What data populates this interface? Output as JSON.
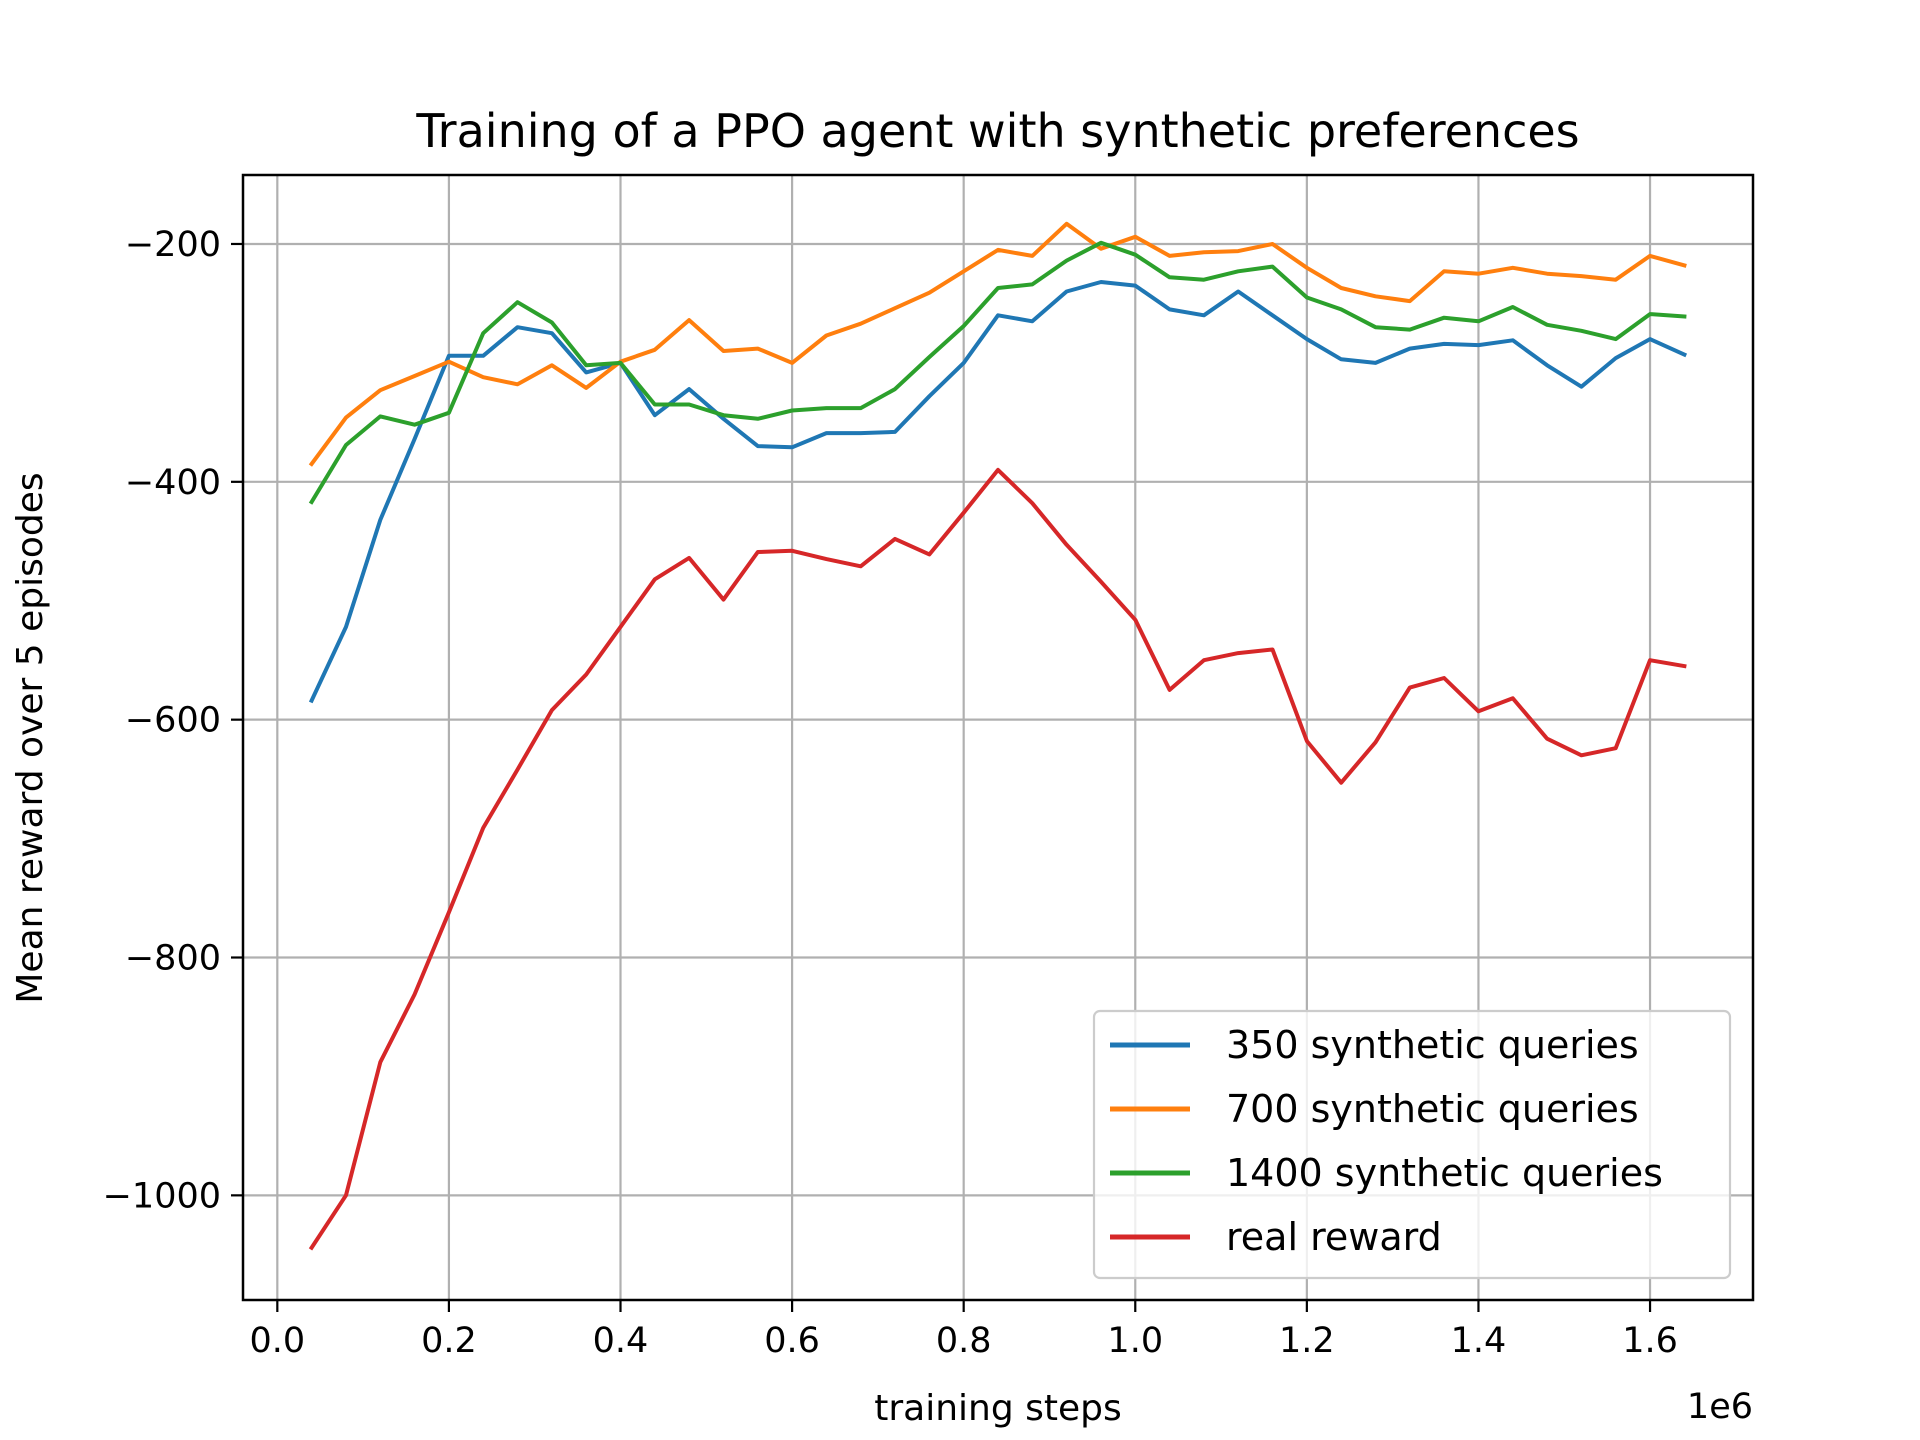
{
  "chart_data": {
    "type": "line",
    "title": "Training of a PPO agent with synthetic preferences",
    "xlabel": "training steps",
    "ylabel": "Mean reward over 5 episodes",
    "x_offset_label": "1e6",
    "xlim": [
      -0.04,
      1.72
    ],
    "ylim": [
      -1088,
      -142
    ],
    "xticks": [
      0.0,
      0.2,
      0.4,
      0.6,
      0.8,
      1.0,
      1.2,
      1.4,
      1.6
    ],
    "xtick_labels": [
      "0.0",
      "0.2",
      "0.4",
      "0.6",
      "0.8",
      "1.0",
      "1.2",
      "1.4",
      "1.6"
    ],
    "yticks": [
      -200,
      -400,
      -600,
      -800,
      -1000
    ],
    "ytick_labels": [
      "−200",
      "−400",
      "−600",
      "−800",
      "−1000"
    ],
    "grid": true,
    "legend_position": "lower-right",
    "x": [
      0.04,
      0.08,
      0.12,
      0.16,
      0.2,
      0.24,
      0.28,
      0.32,
      0.36,
      0.4,
      0.44,
      0.48,
      0.52,
      0.56,
      0.6,
      0.64,
      0.68,
      0.72,
      0.76,
      0.8,
      0.84,
      0.88,
      0.92,
      0.96,
      1.0,
      1.04,
      1.08,
      1.12,
      1.16,
      1.2,
      1.24,
      1.28,
      1.32,
      1.36,
      1.4,
      1.44,
      1.48,
      1.52,
      1.56,
      1.6,
      1.64
    ],
    "series": [
      {
        "name": "350 synthetic queries",
        "color": "#1f77b4",
        "values": [
          -584,
          -522,
          -432,
          -364,
          -294,
          -294,
          -270,
          -275,
          -308,
          -300,
          -344,
          -322,
          -347,
          -370,
          -371,
          -359,
          -359,
          -358,
          -328,
          -300,
          -260,
          -265,
          -240,
          -232,
          -235,
          -255,
          -260,
          -240,
          -260,
          -280,
          -297,
          -300,
          -288,
          -284,
          -285,
          -281,
          -302,
          -320,
          -296,
          -280,
          -293
        ]
      },
      {
        "name": "700 synthetic queries",
        "color": "#ff7f0e",
        "values": [
          -385,
          -346,
          -323,
          -311,
          -299,
          -312,
          -318,
          -302,
          -321,
          -299,
          -289,
          -264,
          -290,
          -288,
          -300,
          -277,
          -267,
          -254,
          -241,
          -223,
          -205,
          -210,
          -183,
          -204,
          -194,
          -210,
          -207,
          -206,
          -200,
          -220,
          -237,
          -244,
          -248,
          -223,
          -225,
          -220,
          -225,
          -227,
          -230,
          -210,
          -218
        ]
      },
      {
        "name": "1400 synthetic queries",
        "color": "#2ca02c",
        "values": [
          -417,
          -369,
          -345,
          -352,
          -342,
          -275,
          -249,
          -266,
          -302,
          -300,
          -335,
          -335,
          -344,
          -347,
          -340,
          -338,
          -338,
          -322,
          -295,
          -269,
          -237,
          -234,
          -214,
          -199,
          -209,
          -228,
          -230,
          -223,
          -219,
          -245,
          -255,
          -270,
          -272,
          -262,
          -265,
          -253,
          -268,
          -273,
          -280,
          -259,
          -261
        ]
      },
      {
        "name": "real reward",
        "color": "#d62728",
        "values": [
          -1044,
          -1000,
          -888,
          -831,
          -762,
          -691,
          -642,
          -592,
          -562,
          -522,
          -482,
          -464,
          -499,
          -459,
          -458,
          -465,
          -471,
          -448,
          -461,
          -426,
          -390,
          -418,
          -453,
          -484,
          -516,
          -575,
          -550,
          -544,
          -541,
          -618,
          -653,
          -619,
          -573,
          -565,
          -593,
          -582,
          -616,
          -630,
          -624,
          -550,
          -555
        ]
      }
    ]
  }
}
